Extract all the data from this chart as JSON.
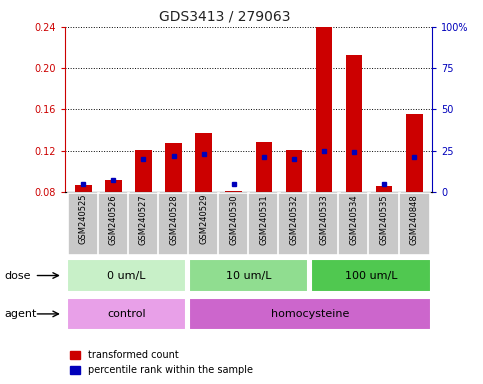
{
  "title": "GDS3413 / 279063",
  "samples": [
    "GSM240525",
    "GSM240526",
    "GSM240527",
    "GSM240528",
    "GSM240529",
    "GSM240530",
    "GSM240531",
    "GSM240532",
    "GSM240533",
    "GSM240534",
    "GSM240535",
    "GSM240848"
  ],
  "red_values": [
    0.087,
    0.092,
    0.121,
    0.127,
    0.137,
    0.081,
    0.128,
    0.121,
    0.24,
    0.213,
    0.086,
    0.156
  ],
  "blue_pct": [
    5,
    7,
    20,
    22,
    23,
    5,
    21,
    20,
    25,
    24,
    5,
    21
  ],
  "ylim_left": [
    0.08,
    0.24
  ],
  "ylim_right": [
    0,
    100
  ],
  "yticks_left": [
    0.08,
    0.12,
    0.16,
    0.2,
    0.24
  ],
  "yticks_right": [
    0,
    25,
    50,
    75,
    100
  ],
  "dose_groups": [
    {
      "label": "0 um/L",
      "start": 0,
      "end": 4,
      "color": "#c8f0c8"
    },
    {
      "label": "10 um/L",
      "start": 4,
      "end": 8,
      "color": "#90dd90"
    },
    {
      "label": "100 um/L",
      "start": 8,
      "end": 12,
      "color": "#50c850"
    }
  ],
  "agent_groups": [
    {
      "label": "control",
      "start": 0,
      "end": 4,
      "color": "#e8a0e8"
    },
    {
      "label": "homocysteine",
      "start": 4,
      "end": 12,
      "color": "#cc66cc"
    }
  ],
  "bar_width": 0.55,
  "red_color": "#cc0000",
  "blue_color": "#0000bb",
  "gray_box_color": "#c8c8c8",
  "legend_red": "transformed count",
  "legend_blue": "percentile rank within the sample",
  "dose_label": "dose",
  "agent_label": "agent",
  "left_axis_color": "#cc0000",
  "right_axis_color": "#0000bb",
  "title_fontsize": 10,
  "tick_fontsize": 7,
  "label_fontsize": 8,
  "legend_fontsize": 7
}
